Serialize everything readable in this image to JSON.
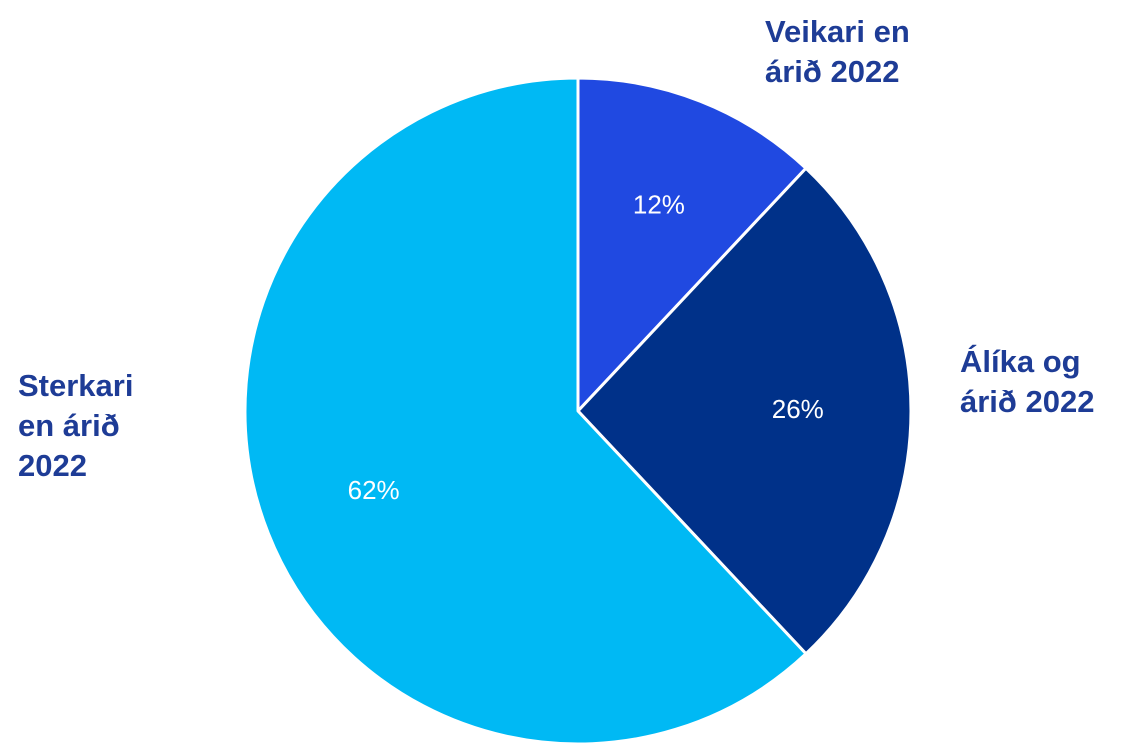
{
  "chart_data": {
    "type": "pie",
    "categories": [
      "Veikari en árið 2022",
      "Álíka og árið 2022",
      "Sterkari en árið 2022"
    ],
    "values": [
      12,
      26,
      62
    ],
    "value_labels": [
      "12%",
      "26%",
      "62%"
    ],
    "colors": [
      "#2049e1",
      "#003189",
      "#00b9f4"
    ]
  }
}
